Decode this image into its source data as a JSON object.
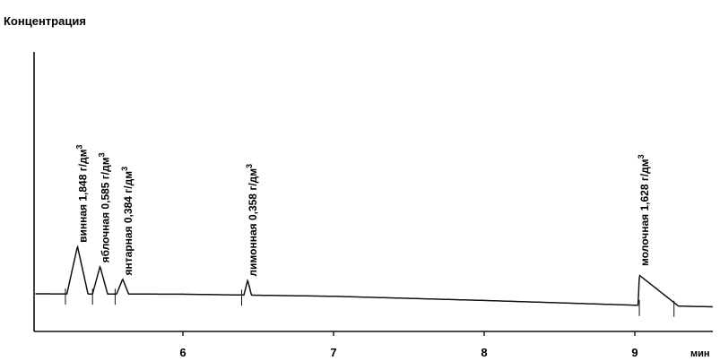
{
  "chart_data": {
    "type": "line",
    "title": "",
    "ylabel": "Концентрация",
    "xlabel": "мин",
    "xlim": [
      5.0,
      10.5
    ],
    "ylim": [
      0,
      1
    ],
    "x_ticks": [
      6,
      7,
      8,
      9
    ],
    "x_tick_labels": [
      "6",
      "7",
      "8",
      "9"
    ],
    "grid": false,
    "baseline": [
      {
        "x": 5.0,
        "y": 0.085
      },
      {
        "x": 6.0,
        "y": 0.083
      },
      {
        "x": 7.0,
        "y": 0.072
      },
      {
        "x": 8.0,
        "y": 0.05
      },
      {
        "x": 9.0,
        "y": 0.025
      },
      {
        "x": 10.5,
        "y": 0.0
      }
    ],
    "peaks": [
      {
        "label": "винная 1,848 г/дм",
        "superscript": "3",
        "x": 5.3,
        "y": 0.19,
        "width": 0.14
      },
      {
        "label": "яблочная 0,585 г/дм",
        "superscript": "3",
        "x": 5.45,
        "y": 0.11,
        "width": 0.1
      },
      {
        "label": "янтарная 0,384 г/дм",
        "superscript": "3",
        "x": 5.6,
        "y": 0.06,
        "width": 0.08
      },
      {
        "label": "лимонная 0,358 г/дм",
        "superscript": "3",
        "x": 6.43,
        "y": 0.06,
        "width": 0.05
      },
      {
        "label": "молочная 1,628 г/дм",
        "superscript": "3",
        "x": 9.03,
        "y": 0.12,
        "width": 0.26
      }
    ]
  }
}
